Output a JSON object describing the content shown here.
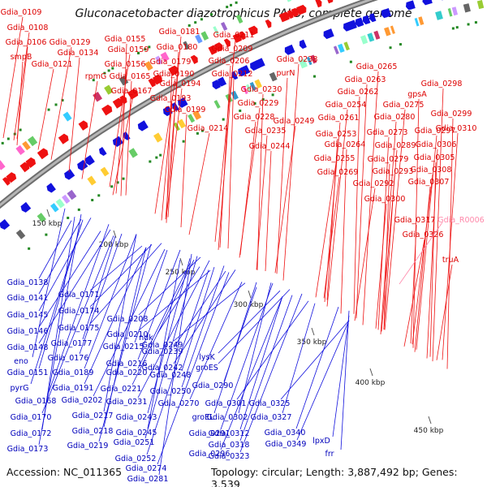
{
  "title": "Gluconacetobacter diazotrophicus PAI 5, complete genome",
  "footer": {
    "accession": "Accession: NC_011365",
    "topology": "Topology: circular; Length: 3,887,492 bp; Genes: 3,539"
  },
  "colors": {
    "forward_strand": "#ee1111",
    "reverse_strand": "#1111dd",
    "rna_gene": "#ff88aa",
    "genome_axis": "#8a8a8a",
    "tick_mark": "#228822"
  },
  "ticks": [
    "150 kbp",
    "200 kbp",
    "250 kbp",
    "300 kbp",
    "350 kbp",
    "400 kbp",
    "450 kbp"
  ],
  "top_labels": [
    "Gdia_0109",
    "Gdia_0108",
    "Gdia_0106",
    "smpB",
    "Gdia_0129",
    "Gdia_0121",
    "Gdia_0134",
    "Gdia_0155",
    "Gdia_0159",
    "rpmG",
    "Gdia_0156",
    "Gdia_0165",
    "Gdia_0167",
    "Gdia_0181",
    "Gdia_0180",
    "Gdia_0179",
    "Gdia_0190",
    "Gdia_0194",
    "Gdia_0193",
    "Gdia_0199",
    "Gdia_0211",
    "Gdia_0209",
    "Gdia_0206",
    "Gdia_0212",
    "Gdia_0214",
    "Gdia_0238",
    "purN",
    "Gdia_0230",
    "Gdia_0229",
    "Gdia_0228",
    "Gdia_0235",
    "Gdia_0244",
    "Gdia_0249",
    "Gdia_0265",
    "Gdia_0263",
    "Gdia_0262",
    "Gdia_0254",
    "Gdia_0261",
    "Gdia_0253",
    "Gdia_0264",
    "Gdia_0255",
    "Gdia_0269",
    "Gdia_0298",
    "gpsA",
    "Gdia_0275",
    "Gdia_0280",
    "Gdia_0273",
    "Gdia_0279",
    "Gdia_0292",
    "Gdia_0289",
    "Gdia_0293",
    "Gdia_0299",
    "Gdia_0297",
    "Gdia_0310",
    "Gdia_0306",
    "Gdia_0305",
    "Gdia_0308",
    "Gdia_0307",
    "Gdia_0300",
    "Gdia_0317",
    "Gdia_0326",
    "truA"
  ],
  "rna_labels": [
    "Gdia_R0006"
  ],
  "bottom_labels": [
    "Gdia_0138",
    "Gdia_0141",
    "Gdia_0145",
    "Gdia_0146",
    "Gdia_0148",
    "eno",
    "Gdia_0151",
    "pyrG",
    "Gdia_0168",
    "Gdia_0170",
    "Gdia_0172",
    "Gdia_0173",
    "Gdia_0171",
    "Gdia_0174",
    "Gdia_0175",
    "Gdia_0177",
    "Gdia_0176",
    "Gdia_0189",
    "Gdia_0191",
    "Gdia_0202",
    "Gdia_0217",
    "Gdia_0218",
    "Gdia_0219",
    "Gdia_0208",
    "Gdia_0210",
    "Gdia_0215",
    "Gdia_0216",
    "Gdia_0220",
    "Gdia_0221",
    "Gdia_0231",
    "Gdia_0245",
    "Gdia_0243",
    "Gdia_0251",
    "Gdia_0252",
    "Gdia_0274",
    "Gdia_0281",
    "ndk",
    "Gdia_0239",
    "Gdia_0242",
    "Gdia_0249",
    "Gdia_0248",
    "Gdia_0250",
    "Gdia_0270",
    "lysK",
    "groES",
    "Gdia_0290",
    "groEL",
    "Gdia_0291",
    "Gdia_0296",
    "Gdia_0301",
    "Gdia_0302",
    "Gdia_0312",
    "Gdia_0318",
    "Gdia_0323",
    "Gdia_0325",
    "Gdia_0327",
    "Gdia_0340",
    "Gdia_0349",
    "lpxD",
    "frr"
  ]
}
